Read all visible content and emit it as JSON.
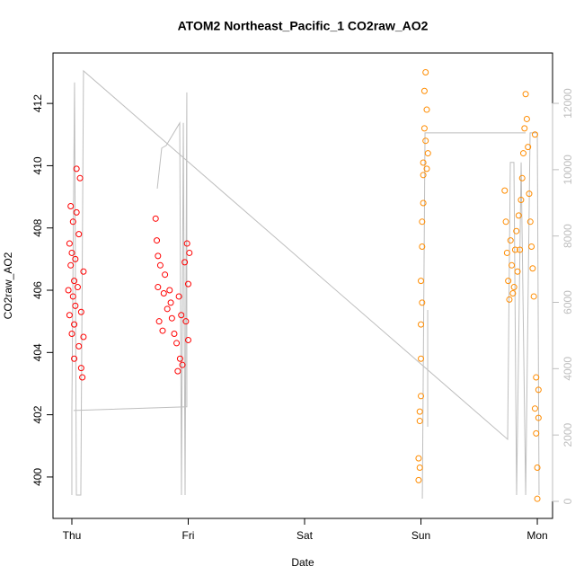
{
  "chart_data": {
    "type": "scatter",
    "title": "ATOM2 Northeast_Pacific_1 CO2raw_AO2",
    "xlabel": "Date",
    "ylabel": "CO2raw_AO2",
    "xlim": [
      -0.162,
      4.131
    ],
    "xticks": [
      {
        "value": 0,
        "label": "Thu"
      },
      {
        "value": 1,
        "label": "Fri"
      },
      {
        "value": 2,
        "label": "Sat"
      },
      {
        "value": 3,
        "label": "Sun"
      },
      {
        "value": 4,
        "label": "Mon"
      }
    ],
    "ylim": [
      398.67,
      413.62
    ],
    "yticks": [
      400,
      402,
      404,
      406,
      408,
      410,
      412
    ],
    "y2lim": [
      -515,
      13518
    ],
    "y2ticks": [
      0,
      2000,
      4000,
      6000,
      8000,
      10000,
      12000
    ],
    "y2color": "#bebebe",
    "series": [
      {
        "type": "line",
        "axis": "y2",
        "color": "#bebebe",
        "x": [
          0,
          0,
          0.023,
          0.039,
          0.077,
          0.1,
          3.745,
          3.768,
          3.799,
          3.822,
          3.861,
          3.9,
          3.938,
          4.0,
          4.015,
          null,
          0.015,
          0.988,
          0.988,
          0.973,
          0.958,
          0.942,
          0.927,
          0.811,
          0.772,
          0.734,
          null,
          3.012,
          3.035,
          3.9,
          null,
          3.058,
          3.058
        ],
        "values": [
          190,
          2740,
          12630,
          190,
          190,
          12980,
          1870,
          10220,
          10220,
          190,
          10220,
          190,
          11110,
          11110,
          190,
          null,
          2740,
          2850,
          12330,
          190,
          11410,
          190,
          11410,
          10730,
          10650,
          9430,
          null,
          80,
          11110,
          11110,
          null,
          5770,
          2250
        ]
      },
      {
        "type": "scatter",
        "color": "#ff0000",
        "x": [
          -0.03,
          -0.02,
          -0.02,
          -0.01,
          -0.01,
          0,
          0,
          0.01,
          0.01,
          0.02,
          0.02,
          0.03,
          0.03,
          0.04,
          0.05,
          0.06,
          0.07,
          0.08,
          0.09,
          0.1,
          0.02,
          0.04,
          0.06,
          0.08,
          0.1,
          0.72,
          0.73,
          0.74,
          0.75,
          0.76,
          0.78,
          0.79,
          0.8,
          0.82,
          0.84,
          0.86,
          0.88,
          0.9,
          0.91,
          0.93,
          0.94,
          0.95,
          0.97,
          0.98,
          0.99,
          1.0,
          1.0,
          1.01,
          0.74,
          0.92,
          0.85
        ],
        "values": [
          406,
          407.5,
          405.2,
          408.7,
          406.8,
          404.6,
          407.2,
          405.8,
          408.2,
          406.3,
          404.9,
          407,
          405.5,
          409.9,
          406.1,
          404.2,
          409.6,
          405.3,
          403.2,
          406.6,
          403.8,
          408.5,
          407.8,
          403.5,
          404.5,
          408.3,
          407.6,
          406.1,
          405,
          406.8,
          404.7,
          405.9,
          406.5,
          405.4,
          406,
          405.1,
          404.6,
          404.3,
          403.4,
          403.8,
          405.2,
          403.6,
          406.9,
          405,
          407.5,
          406.2,
          404.4,
          407.2,
          407.1,
          405.8,
          405.6
        ]
      },
      {
        "type": "scatter",
        "color": "#ff8c00",
        "x": [
          2.98,
          2.98,
          2.99,
          2.99,
          3.0,
          3.0,
          3.0,
          3.01,
          3.01,
          3.02,
          3.02,
          3.03,
          3.03,
          3.04,
          3.04,
          3.05,
          3.05,
          3.06,
          2.99,
          3.0,
          3.01,
          3.02,
          3.72,
          3.73,
          3.74,
          3.75,
          3.76,
          3.77,
          3.78,
          3.79,
          3.8,
          3.81,
          3.82,
          3.83,
          3.84,
          3.85,
          3.86,
          3.87,
          3.88,
          3.89,
          3.9,
          3.91,
          3.92,
          3.93,
          3.94,
          3.95,
          3.96,
          3.97,
          3.98,
          3.99,
          4.0,
          4.01,
          3.99,
          4.0,
          4.01,
          3.98
        ],
        "values": [
          399.9,
          400.6,
          401.8,
          402.1,
          403.8,
          404.9,
          406.3,
          407.4,
          408.2,
          409.7,
          410.1,
          411.2,
          412.4,
          413,
          410.8,
          411.8,
          409.9,
          410.4,
          400.3,
          402.6,
          405.6,
          408.8,
          409.2,
          408.2,
          407.2,
          406.3,
          405.7,
          407.6,
          406.8,
          405.9,
          406.1,
          407.3,
          407.9,
          406.6,
          408.4,
          407.3,
          408.9,
          409.6,
          410.4,
          411.2,
          412.3,
          411.5,
          410.6,
          409.1,
          408.2,
          407.4,
          406.7,
          405.8,
          402.2,
          401.4,
          400.3,
          402.8,
          403.2,
          399.3,
          401.9,
          411
        ]
      }
    ]
  }
}
